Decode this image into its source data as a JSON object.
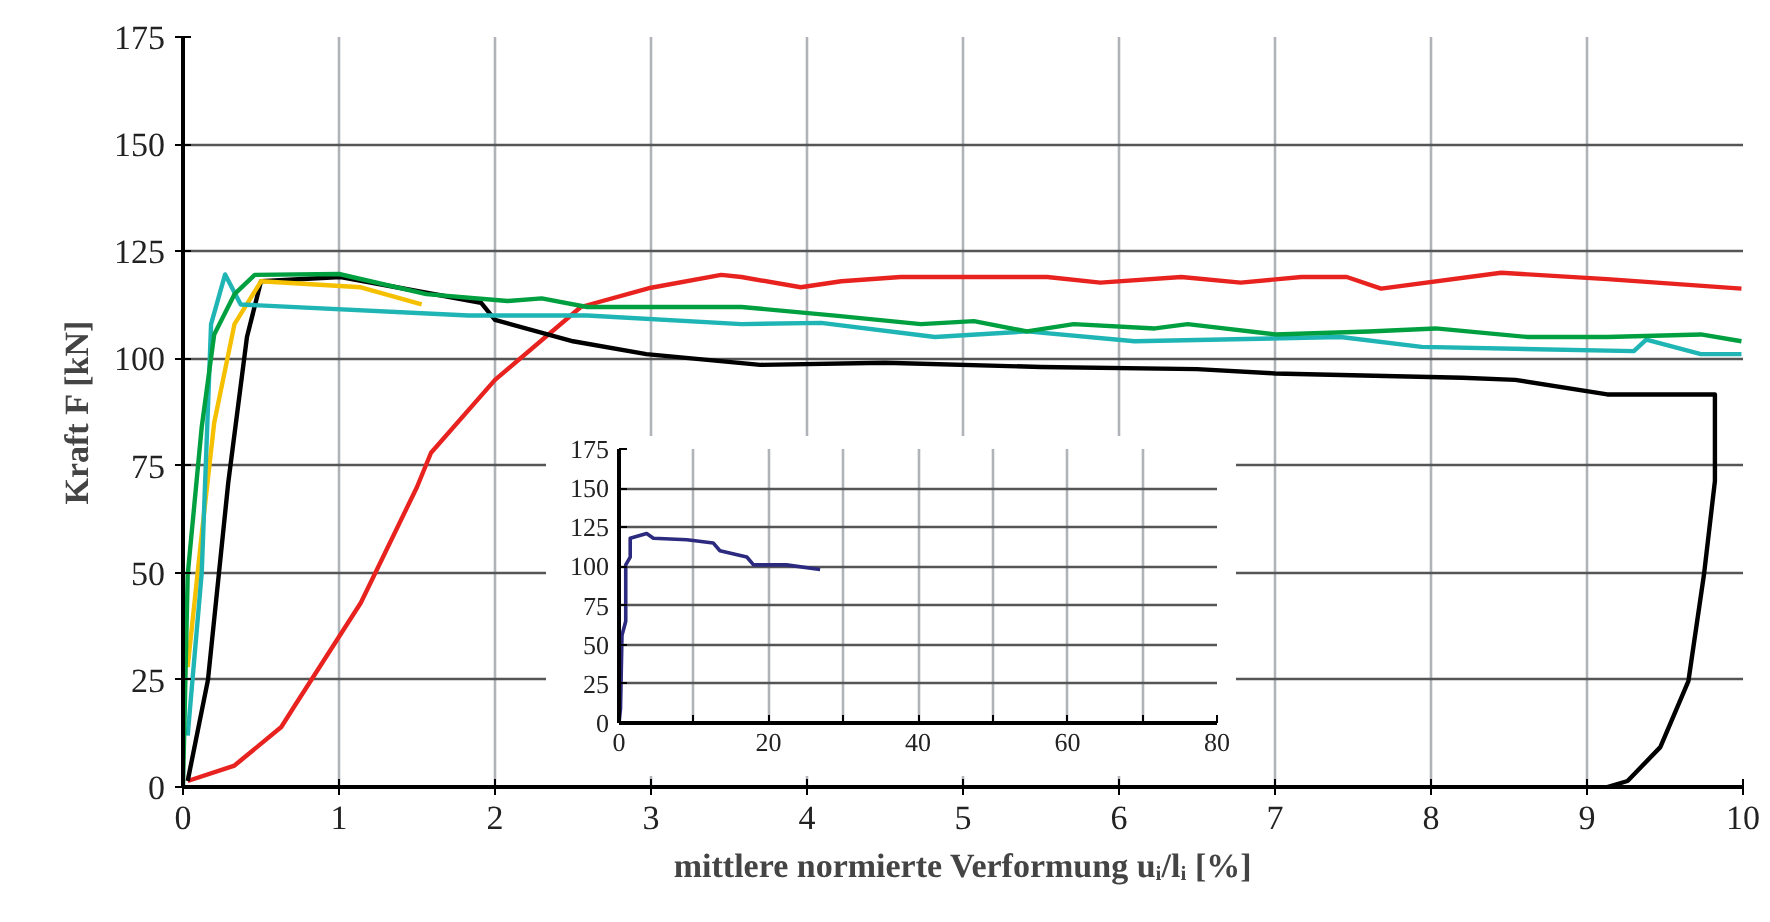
{
  "chart_data": [
    {
      "type": "line",
      "xlabel": "mittlere normierte Verformung uᵢ/lᵢ [%]",
      "ylabel": "Kraft F [kN]",
      "xlim": [
        0,
        10
      ],
      "ylim": [
        0,
        175
      ],
      "xticks": [
        0,
        1,
        2,
        3,
        4,
        5,
        6,
        7,
        8,
        9,
        10
      ],
      "yticks": [
        0,
        25,
        50,
        75,
        100,
        125,
        150,
        175
      ],
      "grid": true,
      "marker": "none",
      "line_style": "solid",
      "series": [
        {
          "color": "#e8231f",
          "x": [
            0.03,
            0.33,
            0.63,
            0.71,
            1.14,
            1.5,
            1.59,
            2.0,
            2.55,
            3.0,
            3.45,
            3.58,
            3.96,
            4.22,
            4.6,
            5.54,
            5.88,
            6.4,
            6.78,
            7.17,
            7.46,
            7.68,
            8.45,
            9.13,
            9.99
          ],
          "values": [
            1.4,
            5,
            14,
            18.6,
            43,
            70,
            78,
            95,
            112,
            116.5,
            119.5,
            119,
            116.6,
            118,
            119,
            119,
            117.7,
            119,
            117.7,
            119,
            119,
            116.3,
            120,
            118.5,
            116.3
          ]
        },
        {
          "color": "#000000",
          "x": [
            0.03,
            0.16,
            0.29,
            0.41,
            0.5,
            1.01,
            1.91,
            2.0,
            2.5,
            2.97,
            3.7,
            4.5,
            5.5,
            6.5,
            7.0,
            8.2,
            8.54,
            9.13,
            9.82,
            9.82,
            9.75,
            9.65,
            9.47,
            9.26,
            9.13
          ],
          "values": [
            1.4,
            25,
            71,
            105,
            118,
            119,
            113,
            109,
            104,
            101,
            98.5,
            99,
            98,
            97.5,
            96.5,
            95.5,
            95,
            91.6,
            91.6,
            71.4,
            49.6,
            24.7,
            9.3,
            1.4,
            0
          ]
        },
        {
          "color": "#f5c000",
          "x": [
            0.03,
            0.12,
            0.2,
            0.33,
            0.5,
            1.14,
            1.53
          ],
          "values": [
            28,
            59,
            85,
            108,
            118,
            116.6,
            112.6
          ]
        },
        {
          "color": "#1fb5b5",
          "x": [
            0.03,
            0.12,
            0.18,
            0.27,
            0.37,
            1.83,
            2.59,
            3.58,
            4.09,
            4.82,
            5.41,
            6.1,
            7.42,
            7.94,
            9.3,
            9.38,
            9.73,
            9.99
          ],
          "values": [
            12,
            50,
            108,
            119.6,
            112.6,
            110,
            110,
            108,
            108.3,
            105,
            106.3,
            104,
            105,
            102.7,
            101.7,
            104.4,
            101,
            101
          ]
        },
        {
          "color": "#00a040",
          "x": [
            0,
            0.03,
            0.12,
            0.2,
            0.33,
            0.46,
            1.0,
            1.56,
            2.08,
            2.3,
            2.59,
            3.58,
            4.18,
            4.73,
            5.07,
            5.41,
            5.71,
            6.23,
            6.44,
            7.0,
            7.6,
            8.03,
            8.62,
            9.13,
            9.73,
            9.99
          ],
          "values": [
            0,
            49.5,
            84,
            105.6,
            115,
            119.5,
            119.7,
            115,
            113.4,
            114,
            112,
            112,
            110,
            108,
            108.7,
            106.3,
            108,
            107,
            108,
            105.6,
            106.3,
            107,
            105,
            105,
            105.6,
            104
          ]
        }
      ]
    },
    {
      "type": "line",
      "xlim": [
        0,
        80
      ],
      "ylim": [
        0,
        175
      ],
      "xticks": [
        0,
        {
          "value": 10,
          "label": null
        },
        20,
        {
          "value": 30,
          "label": null
        },
        40,
        {
          "value": 50,
          "label": null
        },
        60,
        {
          "value": 70,
          "label": null
        },
        80
      ],
      "yticks": [
        0,
        25,
        50,
        75,
        100,
        125,
        150,
        175
      ],
      "grid": true,
      "marker": "none",
      "line_style": "solid",
      "series": [
        {
          "color": "#2b2a7f",
          "x": [
            0,
            0.2,
            0.4,
            0.9,
            0.9,
            1.5,
            1.5,
            3.7,
            4.6,
            9.1,
            12.6,
            13.5,
            17.1,
            18,
            22.4,
            26.9
          ],
          "values": [
            0,
            9,
            56,
            65,
            101,
            106,
            118,
            121,
            118,
            117,
            115,
            110,
            106,
            101,
            101,
            98
          ]
        }
      ]
    }
  ]
}
